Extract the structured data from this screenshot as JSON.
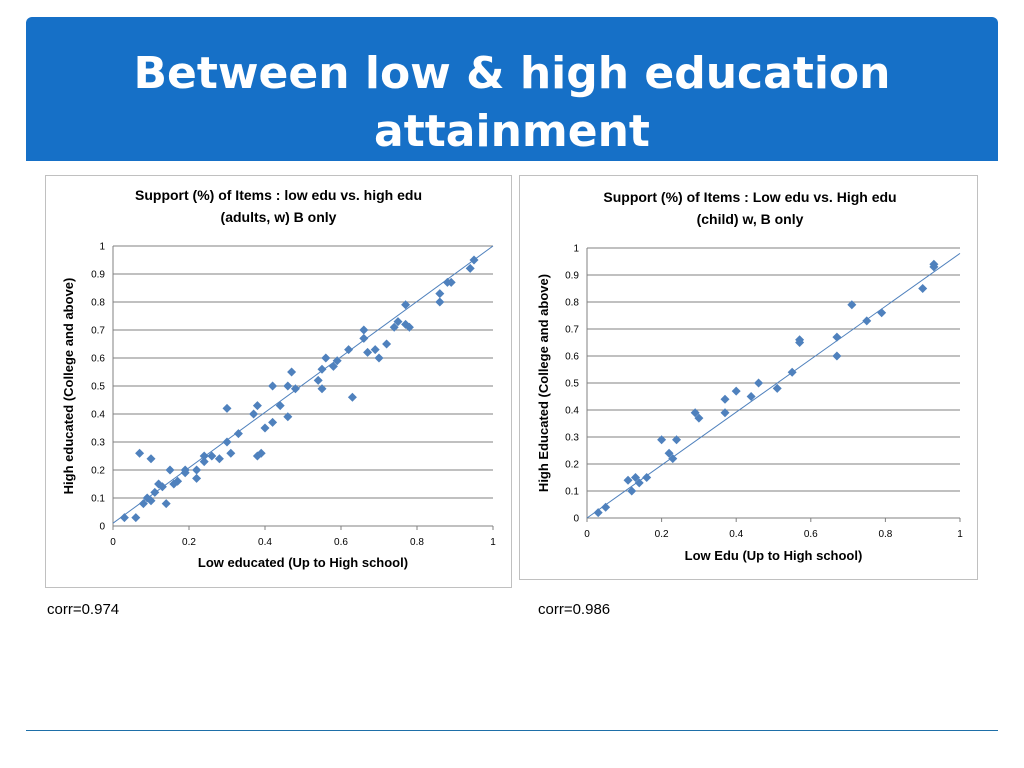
{
  "slide": {
    "title": "Between low & high education attainment",
    "corr_left": "corr=0.974",
    "corr_right": "corr=0.986"
  },
  "colors": {
    "banner": "#1670c7",
    "marker": "#4f81bd",
    "fit_line": "#4f81bd",
    "grid": "#808080"
  },
  "chart_data": [
    {
      "type": "scatter",
      "title_lines": [
        "Support (%) of Items : low edu vs. high edu",
        "(adults, w) B only"
      ],
      "xlabel": "Low educated (Up to High school)",
      "ylabel": "High educated (College and above)",
      "xlim": [
        0,
        1
      ],
      "ylim": [
        0,
        1
      ],
      "xticks": [
        "0",
        "0.2",
        "0.4",
        "0.6",
        "0.8",
        "1"
      ],
      "yticks": [
        "0",
        "0.1",
        "0.2",
        "0.3",
        "0.4",
        "0.5",
        "0.6",
        "0.7",
        "0.8",
        "0.9",
        "1"
      ],
      "grid": "horizontal",
      "trendline": [
        [
          0,
          0.01
        ],
        [
          1,
          1.0
        ]
      ],
      "points": [
        [
          0.03,
          0.03
        ],
        [
          0.06,
          0.03
        ],
        [
          0.07,
          0.26
        ],
        [
          0.08,
          0.08
        ],
        [
          0.09,
          0.1
        ],
        [
          0.1,
          0.09
        ],
        [
          0.1,
          0.24
        ],
        [
          0.11,
          0.12
        ],
        [
          0.12,
          0.15
        ],
        [
          0.13,
          0.14
        ],
        [
          0.14,
          0.08
        ],
        [
          0.15,
          0.2
        ],
        [
          0.16,
          0.15
        ],
        [
          0.17,
          0.16
        ],
        [
          0.19,
          0.2
        ],
        [
          0.19,
          0.19
        ],
        [
          0.22,
          0.2
        ],
        [
          0.22,
          0.17
        ],
        [
          0.24,
          0.23
        ],
        [
          0.24,
          0.25
        ],
        [
          0.26,
          0.25
        ],
        [
          0.28,
          0.24
        ],
        [
          0.3,
          0.42
        ],
        [
          0.3,
          0.3
        ],
        [
          0.31,
          0.26
        ],
        [
          0.33,
          0.33
        ],
        [
          0.37,
          0.4
        ],
        [
          0.38,
          0.43
        ],
        [
          0.38,
          0.25
        ],
        [
          0.39,
          0.26
        ],
        [
          0.4,
          0.35
        ],
        [
          0.42,
          0.5
        ],
        [
          0.42,
          0.37
        ],
        [
          0.44,
          0.43
        ],
        [
          0.46,
          0.5
        ],
        [
          0.46,
          0.39
        ],
        [
          0.47,
          0.55
        ],
        [
          0.48,
          0.49
        ],
        [
          0.54,
          0.52
        ],
        [
          0.55,
          0.56
        ],
        [
          0.55,
          0.49
        ],
        [
          0.56,
          0.6
        ],
        [
          0.58,
          0.57
        ],
        [
          0.59,
          0.59
        ],
        [
          0.62,
          0.63
        ],
        [
          0.63,
          0.46
        ],
        [
          0.66,
          0.7
        ],
        [
          0.66,
          0.67
        ],
        [
          0.67,
          0.62
        ],
        [
          0.69,
          0.63
        ],
        [
          0.7,
          0.6
        ],
        [
          0.72,
          0.65
        ],
        [
          0.74,
          0.71
        ],
        [
          0.75,
          0.73
        ],
        [
          0.77,
          0.72
        ],
        [
          0.78,
          0.71
        ],
        [
          0.77,
          0.79
        ],
        [
          0.86,
          0.8
        ],
        [
          0.86,
          0.83
        ],
        [
          0.88,
          0.87
        ],
        [
          0.89,
          0.87
        ],
        [
          0.94,
          0.92
        ],
        [
          0.95,
          0.95
        ]
      ]
    },
    {
      "type": "scatter",
      "title_lines": [
        "Support (%) of Items : Low edu vs. High edu",
        "(child) w, B only"
      ],
      "xlabel": "Low Edu (Up to High school)",
      "ylabel": "High Educated (College and above)",
      "xlim": [
        0,
        1
      ],
      "ylim": [
        0,
        1
      ],
      "xticks": [
        "0",
        "0.2",
        "0.4",
        "0.6",
        "0.8",
        "1"
      ],
      "yticks": [
        "0",
        "0.1",
        "0.2",
        "0.3",
        "0.4",
        "0.5",
        "0.6",
        "0.7",
        "0.8",
        "0.9",
        "1"
      ],
      "grid": "horizontal",
      "trendline": [
        [
          0,
          0.0
        ],
        [
          1,
          0.98
        ]
      ],
      "points": [
        [
          0.03,
          0.02
        ],
        [
          0.05,
          0.04
        ],
        [
          0.11,
          0.14
        ],
        [
          0.12,
          0.1
        ],
        [
          0.13,
          0.15
        ],
        [
          0.14,
          0.13
        ],
        [
          0.16,
          0.15
        ],
        [
          0.2,
          0.29
        ],
        [
          0.22,
          0.24
        ],
        [
          0.23,
          0.22
        ],
        [
          0.24,
          0.29
        ],
        [
          0.29,
          0.39
        ],
        [
          0.3,
          0.37
        ],
        [
          0.37,
          0.44
        ],
        [
          0.37,
          0.39
        ],
        [
          0.4,
          0.47
        ],
        [
          0.44,
          0.45
        ],
        [
          0.46,
          0.5
        ],
        [
          0.51,
          0.48
        ],
        [
          0.55,
          0.54
        ],
        [
          0.57,
          0.65
        ],
        [
          0.57,
          0.66
        ],
        [
          0.67,
          0.6
        ],
        [
          0.67,
          0.67
        ],
        [
          0.71,
          0.79
        ],
        [
          0.75,
          0.73
        ],
        [
          0.79,
          0.76
        ],
        [
          0.9,
          0.85
        ],
        [
          0.93,
          0.94
        ],
        [
          0.93,
          0.93
        ]
      ]
    }
  ]
}
